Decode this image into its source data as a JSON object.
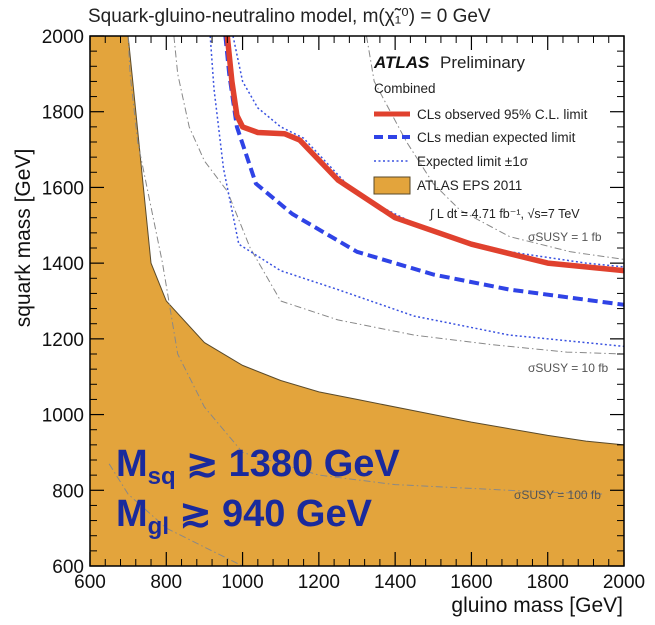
{
  "chart_data": {
    "type": "line",
    "title": "Squark-gluino-neutralino model,  m(χ̃₁⁰) = 0 GeV",
    "xlabel": "gluino mass [GeV]",
    "ylabel": "squark mass [GeV]",
    "xlim": [
      600,
      2000
    ],
    "ylim": [
      600,
      2000
    ],
    "x_ticks": [
      600,
      800,
      1000,
      1200,
      1400,
      1600,
      1800,
      2000
    ],
    "y_ticks": [
      600,
      800,
      1000,
      1200,
      1400,
      1600,
      1800,
      2000
    ],
    "x_tick_labels": [
      "600",
      "800",
      "1000",
      "1200",
      "1400",
      "1600",
      "1800",
      "2000"
    ],
    "y_tick_labels": [
      "600",
      "800",
      "1000",
      "1200",
      "1400",
      "1600",
      "1800",
      "2000"
    ],
    "legend": {
      "atlas": "ATLAS",
      "preliminary": "Preliminary",
      "header": "Combined",
      "observed": "CLs observed 95% C.L. limit",
      "expected": "CLs median expected limit",
      "band": "Expected limit ±1σ",
      "eps": "ATLAS EPS 2011",
      "lumi": "∫ L dt = 4.71 fb⁻¹,  √s=7 TeV",
      "position": "top-right"
    },
    "xsec_labels": [
      "σSUSY = 1 fb",
      "σSUSY = 10 fb",
      "σSUSY = 100 fb"
    ],
    "series": [
      {
        "name": "CLs observed 95% C.L. limit",
        "color": "#e0412e",
        "style": "solid",
        "points": [
          [
            960,
            2000
          ],
          [
            972,
            1880
          ],
          [
            985,
            1790
          ],
          [
            1000,
            1760
          ],
          [
            1040,
            1745
          ],
          [
            1110,
            1742
          ],
          [
            1150,
            1725
          ],
          [
            1250,
            1620
          ],
          [
            1400,
            1520
          ],
          [
            1600,
            1450
          ],
          [
            1800,
            1400
          ],
          [
            2000,
            1380
          ]
        ]
      },
      {
        "name": "CLs median expected limit",
        "color": "#2f43e6",
        "style": "dashed",
        "points": [
          [
            955,
            2000
          ],
          [
            965,
            1900
          ],
          [
            985,
            1760
          ],
          [
            1035,
            1610
          ],
          [
            1130,
            1530
          ],
          [
            1300,
            1430
          ],
          [
            1500,
            1370
          ],
          [
            1700,
            1330
          ],
          [
            1850,
            1310
          ],
          [
            2000,
            1290
          ]
        ]
      },
      {
        "name": "Expected limit +1σ",
        "color": "#3a52e0",
        "style": "dotted",
        "points": [
          [
            975,
            2000
          ],
          [
            1000,
            1880
          ],
          [
            1040,
            1810
          ],
          [
            1100,
            1760
          ],
          [
            1160,
            1730
          ],
          [
            1300,
            1580
          ],
          [
            1500,
            1480
          ],
          [
            1700,
            1430
          ],
          [
            1900,
            1400
          ],
          [
            2000,
            1390
          ]
        ]
      },
      {
        "name": "Expected limit -1σ",
        "color": "#3a52e0",
        "style": "dotted",
        "points": [
          [
            915,
            2000
          ],
          [
            925,
            1860
          ],
          [
            950,
            1650
          ],
          [
            990,
            1450
          ],
          [
            1100,
            1380
          ],
          [
            1250,
            1330
          ],
          [
            1450,
            1260
          ],
          [
            1700,
            1210
          ],
          [
            1900,
            1190
          ],
          [
            2000,
            1180
          ]
        ]
      },
      {
        "name": "σSUSY = 1 fb",
        "color": "#888888",
        "style": "dashdot",
        "points": [
          [
            1325,
            2000
          ],
          [
            1345,
            1880
          ],
          [
            1430,
            1720
          ],
          [
            1500,
            1610
          ],
          [
            1570,
            1540
          ],
          [
            1700,
            1470
          ],
          [
            1860,
            1430
          ],
          [
            2000,
            1410
          ]
        ]
      },
      {
        "name": "σSUSY = 10 fb",
        "color": "#888888",
        "style": "dashdot",
        "points": [
          [
            820,
            2000
          ],
          [
            830,
            1900
          ],
          [
            860,
            1760
          ],
          [
            900,
            1670
          ],
          [
            960,
            1590
          ],
          [
            1020,
            1440
          ],
          [
            1100,
            1300
          ],
          [
            1250,
            1250
          ],
          [
            1450,
            1210
          ],
          [
            1650,
            1185
          ],
          [
            1850,
            1165
          ],
          [
            2000,
            1160
          ]
        ]
      },
      {
        "name": "σSUSY = 100 fb",
        "color": "#888888",
        "style": "dashdot",
        "points": [
          [
            700,
            2000
          ],
          [
            705,
            1900
          ],
          [
            725,
            1720
          ],
          [
            790,
            1400
          ],
          [
            830,
            1160
          ],
          [
            900,
            1020
          ],
          [
            1000,
            900
          ],
          [
            1200,
            840
          ],
          [
            1400,
            815
          ],
          [
            1600,
            805
          ],
          [
            1800,
            795
          ],
          [
            1950,
            790
          ]
        ]
      },
      {
        "name": "σSUSY = 100 fb (lower)",
        "color": "#888888",
        "style": "dashdot",
        "points": [
          [
            650,
            870
          ],
          [
            700,
            790
          ],
          [
            800,
            700
          ],
          [
            900,
            650
          ],
          [
            980,
            610
          ],
          [
            1000,
            600
          ]
        ]
      }
    ],
    "eps_region": [
      [
        600,
        2000
      ],
      [
        700,
        2000
      ],
      [
        710,
        1900
      ],
      [
        735,
        1650
      ],
      [
        760,
        1400
      ],
      [
        800,
        1300
      ],
      [
        900,
        1190
      ],
      [
        1000,
        1130
      ],
      [
        1100,
        1090
      ],
      [
        1200,
        1060
      ],
      [
        1300,
        1040
      ],
      [
        1450,
        1010
      ],
      [
        1600,
        980
      ],
      [
        1800,
        945
      ],
      [
        1900,
        930
      ],
      [
        2000,
        920
      ],
      [
        2000,
        600
      ],
      [
        600,
        600
      ]
    ],
    "annotations": {
      "msq_main": "M",
      "msq_sub": "sq",
      "msq_val": " ≳ 1380 GeV",
      "mgl_main": "M",
      "mgl_sub": "gl",
      "mgl_val": " ≳ 940 GeV"
    },
    "colors": {
      "eps_fill": "#e3a43c",
      "eps_edge": "#5a4a2a",
      "observed": "#e0412e",
      "expected": "#2f43e6",
      "band": "#3a52e0",
      "xsec": "#888888",
      "annotation": "#1a2a9c"
    }
  }
}
